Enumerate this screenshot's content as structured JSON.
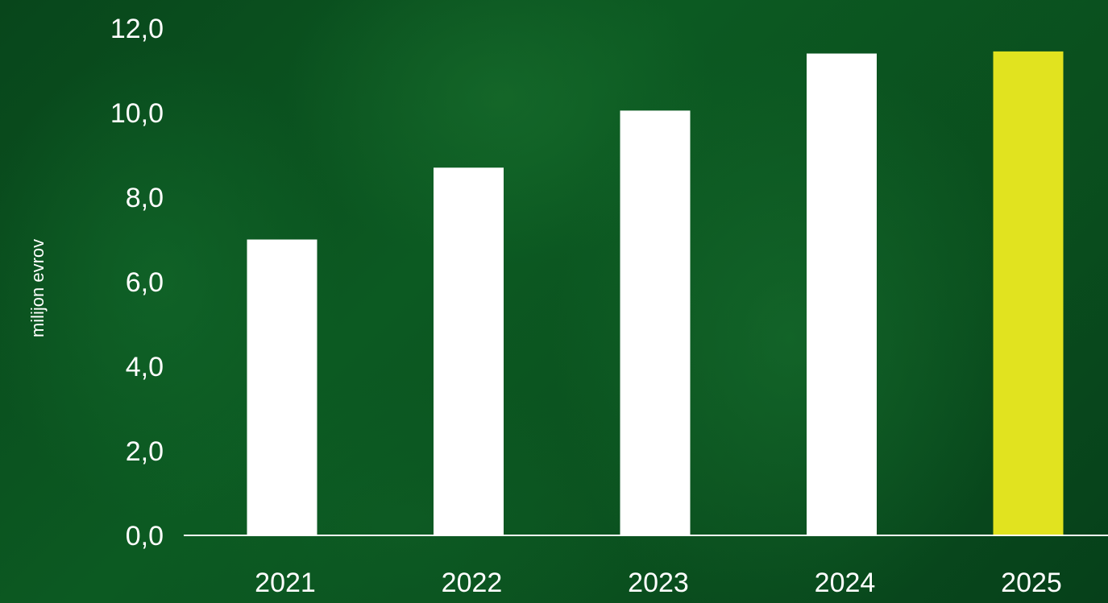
{
  "chart_data": {
    "type": "bar",
    "categories": [
      "2021",
      "2022",
      "2023",
      "2024",
      "2025"
    ],
    "values": [
      7.0,
      8.7,
      10.05,
      11.4,
      11.45
    ],
    "bar_colors": [
      "#ffffff",
      "#ffffff",
      "#ffffff",
      "#ffffff",
      "#e1e31f"
    ],
    "ylabel": "milijon evrov",
    "ylim": [
      0,
      12
    ],
    "yticks": [
      "0,0",
      "2,0",
      "4,0",
      "6,0",
      "8,0",
      "10,0",
      "12,0"
    ],
    "grid": false,
    "colors": {
      "background": "#0b5220",
      "bar": "#ffffff",
      "highlight_bar": "#e1e31f",
      "axis": "#ffffff",
      "text": "#ffffff"
    }
  }
}
